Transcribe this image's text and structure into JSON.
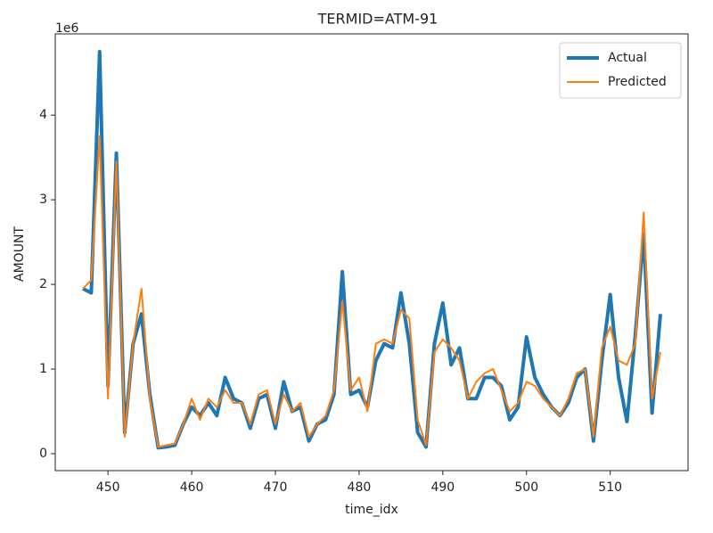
{
  "chart_data": {
    "type": "line",
    "title": "TERMID=ATM-91",
    "x_label": "time_idx",
    "y_label": "AMOUNT",
    "y_offset_label": "1e6",
    "x": [
      447,
      448,
      449,
      450,
      451,
      452,
      453,
      454,
      455,
      456,
      457,
      458,
      459,
      460,
      461,
      462,
      463,
      464,
      465,
      466,
      467,
      468,
      469,
      470,
      471,
      472,
      473,
      474,
      475,
      476,
      477,
      478,
      479,
      480,
      481,
      482,
      483,
      484,
      485,
      486,
      487,
      488,
      489,
      490,
      491,
      492,
      493,
      494,
      495,
      496,
      497,
      498,
      499,
      500,
      501,
      502,
      503,
      504,
      505,
      506,
      507,
      508,
      509,
      510,
      511,
      512,
      513,
      514,
      515,
      516
    ],
    "series": [
      {
        "name": "Actual",
        "color": "#1f77b4",
        "values": [
          1.95,
          1.9,
          4.75,
          0.8,
          3.55,
          0.25,
          1.3,
          1.65,
          0.7,
          0.07,
          0.08,
          0.1,
          0.35,
          0.55,
          0.45,
          0.6,
          0.45,
          0.9,
          0.65,
          0.6,
          0.3,
          0.65,
          0.7,
          0.3,
          0.85,
          0.5,
          0.55,
          0.15,
          0.35,
          0.4,
          0.7,
          2.15,
          0.7,
          0.75,
          0.55,
          1.1,
          1.3,
          1.25,
          1.9,
          1.3,
          0.25,
          0.08,
          1.3,
          1.78,
          1.05,
          1.25,
          0.65,
          0.65,
          0.9,
          0.9,
          0.8,
          0.4,
          0.55,
          1.38,
          0.9,
          0.7,
          0.55,
          0.45,
          0.6,
          0.9,
          1.0,
          0.15,
          1.1,
          1.88,
          0.9,
          0.38,
          1.4,
          2.6,
          0.48,
          1.65
        ]
      },
      {
        "name": "Predicted",
        "color": "#ff7f0e",
        "values": [
          1.95,
          2.05,
          3.75,
          0.65,
          3.45,
          0.2,
          1.3,
          1.95,
          0.65,
          0.08,
          0.1,
          0.12,
          0.35,
          0.65,
          0.4,
          0.65,
          0.55,
          0.75,
          0.6,
          0.6,
          0.35,
          0.7,
          0.75,
          0.35,
          0.7,
          0.5,
          0.6,
          0.2,
          0.35,
          0.45,
          0.75,
          1.8,
          0.75,
          0.9,
          0.5,
          1.3,
          1.35,
          1.3,
          1.7,
          1.6,
          0.4,
          0.1,
          1.2,
          1.35,
          1.25,
          1.1,
          0.65,
          0.85,
          0.95,
          1.0,
          0.75,
          0.5,
          0.6,
          0.85,
          0.8,
          0.65,
          0.55,
          0.45,
          0.65,
          0.95,
          1.0,
          0.2,
          1.25,
          1.5,
          1.1,
          1.05,
          1.3,
          2.85,
          0.65,
          1.2
        ]
      }
    ],
    "xlim": [
      443.7,
      519.3
    ],
    "ylim": [
      -0.2,
      4.96
    ],
    "xticks": [
      450,
      460,
      470,
      480,
      490,
      500,
      510
    ],
    "yticks": [
      0,
      1,
      2,
      3,
      4
    ],
    "legend": "upper right"
  }
}
